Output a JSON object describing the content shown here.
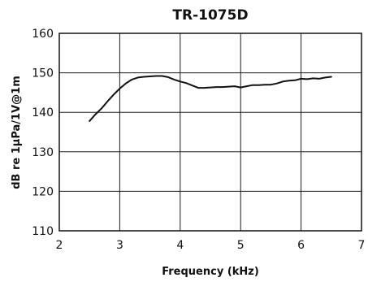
{
  "chart_data": {
    "type": "line",
    "title": "TR-1075D",
    "xlabel": "Frequency (kHz)",
    "ylabel": "dB re 1µPa/1V@1m",
    "xlim": [
      2,
      7
    ],
    "ylim": [
      110,
      160
    ],
    "xticks": [
      "2",
      "3",
      "4",
      "5",
      "6",
      "7"
    ],
    "yticks": [
      "110",
      "120",
      "130",
      "140",
      "150",
      "160"
    ],
    "grid": true,
    "series": [
      {
        "x": [
          2.5,
          2.6,
          2.7,
          2.8,
          2.9,
          3.0,
          3.1,
          3.2,
          3.3,
          3.4,
          3.5,
          3.6,
          3.7,
          3.8,
          3.9,
          4.0,
          4.1,
          4.2,
          4.3,
          4.4,
          4.5,
          4.6,
          4.7,
          4.8,
          4.9,
          5.0,
          5.1,
          5.2,
          5.3,
          5.4,
          5.5,
          5.6,
          5.7,
          5.8,
          5.9,
          6.0,
          6.1,
          6.2,
          6.3,
          6.4,
          6.5
        ],
        "y": [
          137.8,
          139.5,
          141.0,
          142.8,
          144.5,
          146.0,
          147.3,
          148.3,
          148.8,
          149.0,
          149.1,
          149.2,
          149.2,
          148.9,
          148.3,
          147.8,
          147.4,
          146.8,
          146.2,
          146.2,
          146.3,
          146.4,
          146.4,
          146.5,
          146.6,
          146.3,
          146.6,
          146.9,
          146.9,
          147.0,
          147.0,
          147.3,
          147.8,
          148.0,
          148.1,
          148.5,
          148.4,
          148.6,
          148.5,
          148.8,
          149.0
        ]
      }
    ]
  }
}
